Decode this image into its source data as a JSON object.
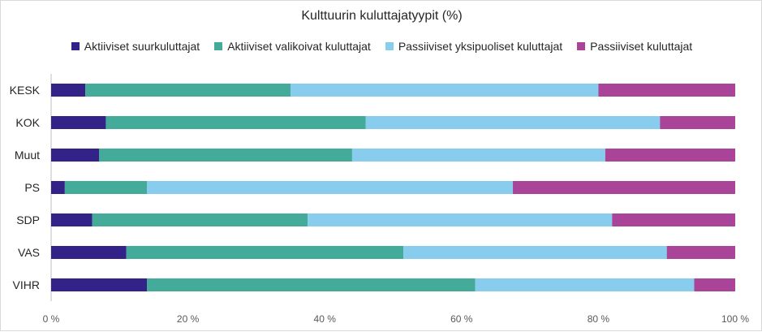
{
  "chart_data": {
    "type": "bar",
    "orientation": "horizontal",
    "stacked": true,
    "title": "Kulttuurin kuluttajatyypit (%)",
    "xlabel": "",
    "ylabel": "",
    "xlim": [
      0,
      100
    ],
    "x_ticks": [
      "0 %",
      "20 %",
      "40 %",
      "60 %",
      "80 %",
      "100 %"
    ],
    "x_tick_values": [
      0,
      20,
      40,
      60,
      80,
      100
    ],
    "legend_position": "top",
    "categories": [
      "KESK",
      "KOK",
      "Muut",
      "PS",
      "SDP",
      "VAS",
      "VIHR"
    ],
    "series": [
      {
        "name": "Aktiiviset suurkuluttajat",
        "color": "#332288",
        "values": [
          5,
          8,
          7,
          2,
          6,
          11,
          14
        ]
      },
      {
        "name": "Aktiiviset valikoivat kuluttajat",
        "color": "#44aa99",
        "values": [
          30,
          38,
          37,
          12,
          31.5,
          40.5,
          48
        ]
      },
      {
        "name": "Passiiviset yksipuoliset kuluttajat",
        "color": "#88ccee",
        "values": [
          45,
          43,
          37,
          53.5,
          44.5,
          38.5,
          32
        ]
      },
      {
        "name": "Passiiviset kuluttajat",
        "color": "#aa4499",
        "values": [
          20,
          11,
          19,
          32.5,
          18,
          10,
          6
        ]
      }
    ]
  }
}
